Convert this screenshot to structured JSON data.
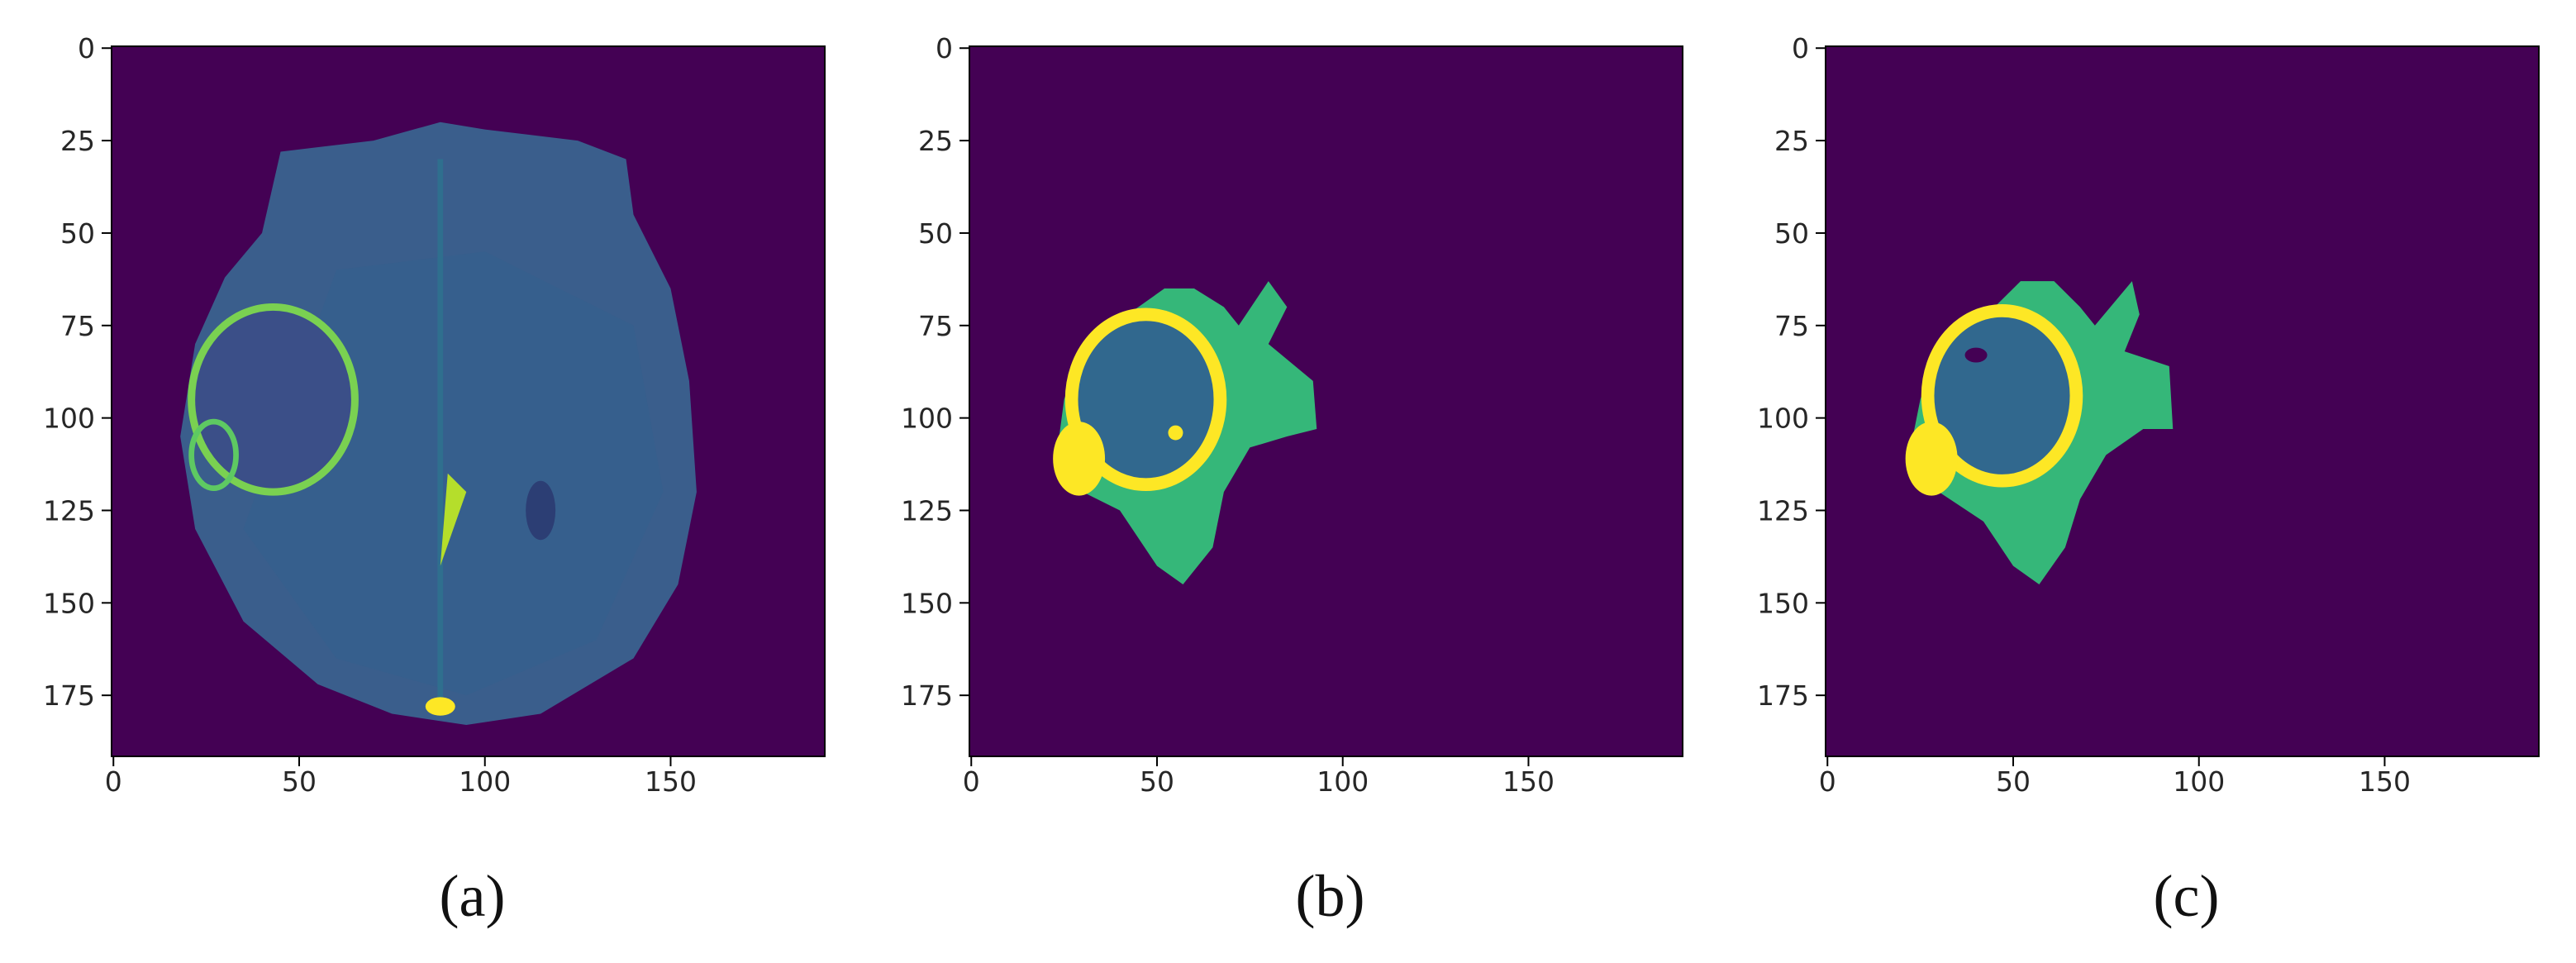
{
  "chart_data": [
    {
      "type": "image",
      "caption": "(a)",
      "xlim": [
        -0.5,
        191.5
      ],
      "ylim": [
        191.5,
        -0.5
      ],
      "xticks": [
        0,
        50,
        100,
        150
      ],
      "yticks": [
        0,
        25,
        50,
        75,
        100,
        125,
        150,
        175
      ],
      "background": "#440154"
    },
    {
      "type": "image",
      "caption": "(b)",
      "xlim": [
        -0.5,
        191.5
      ],
      "ylim": [
        191.5,
        -0.5
      ],
      "xticks": [
        0,
        50,
        100,
        150
      ],
      "yticks": [
        0,
        25,
        50,
        75,
        100,
        125,
        150,
        175
      ],
      "background": "#440154"
    },
    {
      "type": "image",
      "caption": "(c)",
      "xlim": [
        -0.5,
        191.5
      ],
      "ylim": [
        191.5,
        -0.5
      ],
      "xticks": [
        0,
        50,
        100,
        150
      ],
      "yticks": [
        0,
        25,
        50,
        75,
        100,
        125,
        150,
        175
      ],
      "background": "#440154"
    }
  ]
}
